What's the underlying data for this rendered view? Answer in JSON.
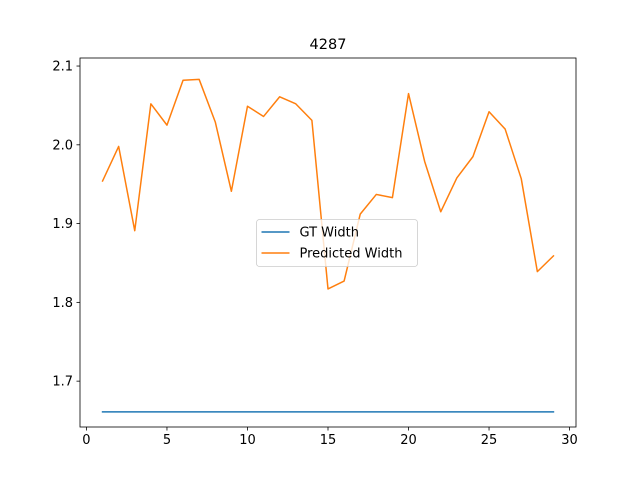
{
  "chart_data": {
    "type": "line",
    "title": "4287",
    "xlabel": "",
    "ylabel": "",
    "xlim": [
      -0.4,
      30.4
    ],
    "ylim": [
      1.6418,
      2.1102
    ],
    "xticks": [
      0,
      5,
      10,
      15,
      20,
      25,
      30
    ],
    "yticks": [
      1.7,
      1.8,
      1.9,
      2.0,
      2.1
    ],
    "ytick_labels": [
      "1.7",
      "1.8",
      "1.9",
      "2.0",
      "2.1"
    ],
    "grid": false,
    "legend_position": "center",
    "series": [
      {
        "name": "GT Width",
        "color": "#1f77b4",
        "x": [
          1,
          2,
          3,
          4,
          5,
          6,
          7,
          8,
          9,
          10,
          11,
          12,
          13,
          14,
          15,
          16,
          17,
          18,
          19,
          20,
          21,
          22,
          23,
          24,
          25,
          26,
          27,
          28,
          29
        ],
        "values": [
          1.661,
          1.661,
          1.661,
          1.661,
          1.661,
          1.661,
          1.661,
          1.661,
          1.661,
          1.661,
          1.661,
          1.661,
          1.661,
          1.661,
          1.661,
          1.661,
          1.661,
          1.661,
          1.661,
          1.661,
          1.661,
          1.661,
          1.661,
          1.661,
          1.661,
          1.661,
          1.661,
          1.661,
          1.661
        ]
      },
      {
        "name": "Predicted Width",
        "color": "#ff7f0e",
        "x": [
          1,
          2,
          3,
          4,
          5,
          6,
          7,
          8,
          9,
          10,
          11,
          12,
          13,
          14,
          15,
          16,
          17,
          18,
          19,
          20,
          21,
          22,
          23,
          24,
          25,
          26,
          27,
          28,
          29
        ],
        "values": [
          1.954,
          1.998,
          1.891,
          2.052,
          2.025,
          2.082,
          2.083,
          2.029,
          1.941,
          2.049,
          2.036,
          2.061,
          2.052,
          2.031,
          1.817,
          1.827,
          1.912,
          1.937,
          1.933,
          2.065,
          1.979,
          1.915,
          1.958,
          1.985,
          2.042,
          2.02,
          1.957,
          1.839,
          1.859
        ]
      }
    ]
  }
}
